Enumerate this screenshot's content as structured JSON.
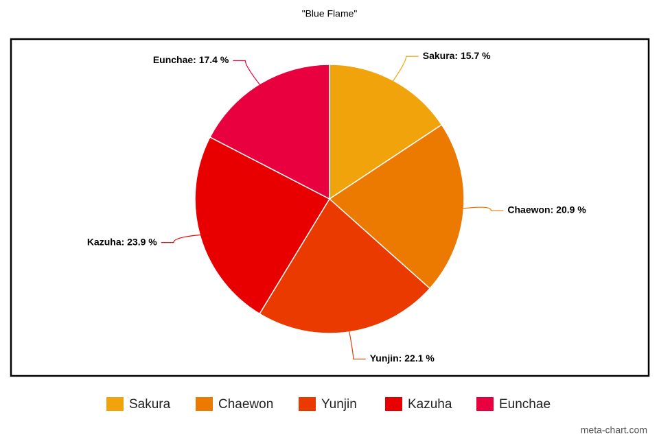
{
  "chart_data": {
    "type": "pie",
    "title": "\"Blue Flame\"",
    "categories": [
      "Sakura",
      "Chaewon",
      "Yunjin",
      "Kazuha",
      "Eunchae"
    ],
    "values": [
      15.7,
      20.9,
      22.1,
      23.9,
      17.4
    ],
    "value_labels": [
      "Sakura: 15.7 %",
      "Chaewon: 20.9 %",
      "Yunjin: 22.1 %",
      "Kazuha: 23.9 %",
      "Eunchae: 17.4 %"
    ],
    "colors": [
      "#f0a30a",
      "#ed7a00",
      "#ea3a00",
      "#e80000",
      "#e8003f"
    ],
    "legend": "bottom",
    "source": "meta-chart.com"
  }
}
